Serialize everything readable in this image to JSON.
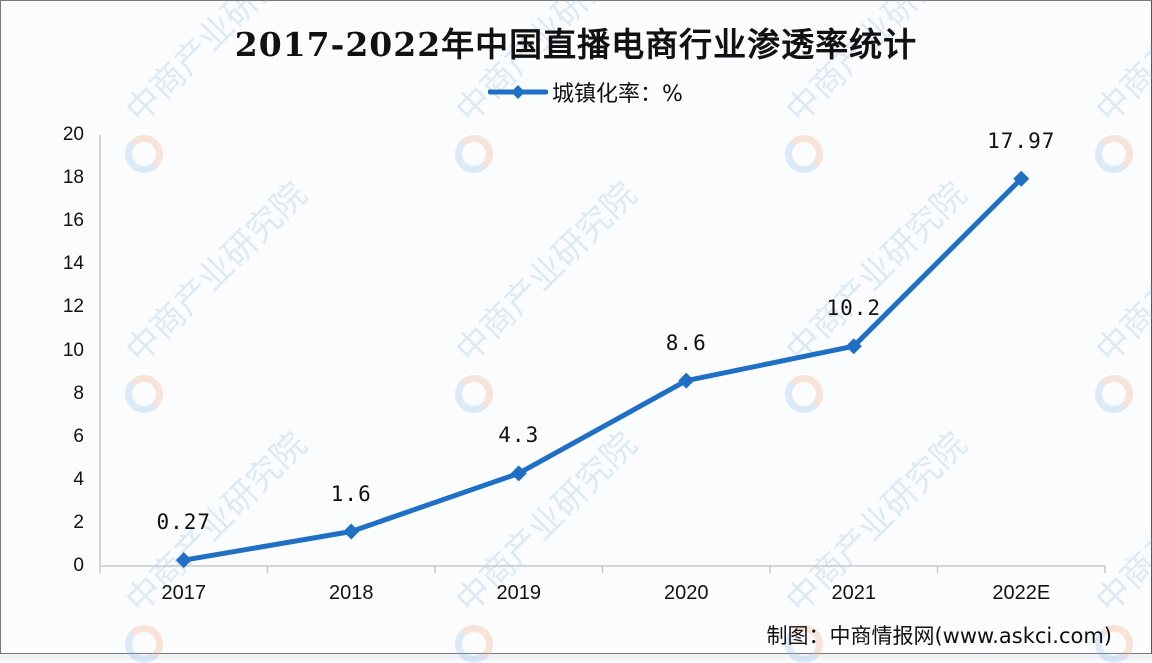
{
  "title": "2017-2022年中国直播电商行业渗透率统计",
  "legend": {
    "label": "城镇化率：%",
    "color": "#1f6fc5"
  },
  "source": "制图：中商情报网(www.askci.com)",
  "watermark": "中商产业研究院",
  "chart_data": {
    "type": "line",
    "title": "2017-2022年中国直播电商行业渗透率统计",
    "xlabel": "",
    "ylabel": "",
    "categories": [
      "2017",
      "2018",
      "2019",
      "2020",
      "2021",
      "2022E"
    ],
    "series": [
      {
        "name": "城镇化率：%",
        "values": [
          0.27,
          1.6,
          4.3,
          8.6,
          10.2,
          17.97
        ],
        "color": "#1f6fc5",
        "marker": "diamond"
      }
    ],
    "data_labels": [
      "0.27",
      "1.6",
      "4.3",
      "8.6",
      "10.2",
      "17.97"
    ],
    "yticks": [
      "0",
      "2",
      "4",
      "6",
      "8",
      "10",
      "12",
      "14",
      "16",
      "18",
      "20"
    ],
    "ylim": [
      0,
      20
    ],
    "grid": false,
    "legend_position": "top"
  }
}
